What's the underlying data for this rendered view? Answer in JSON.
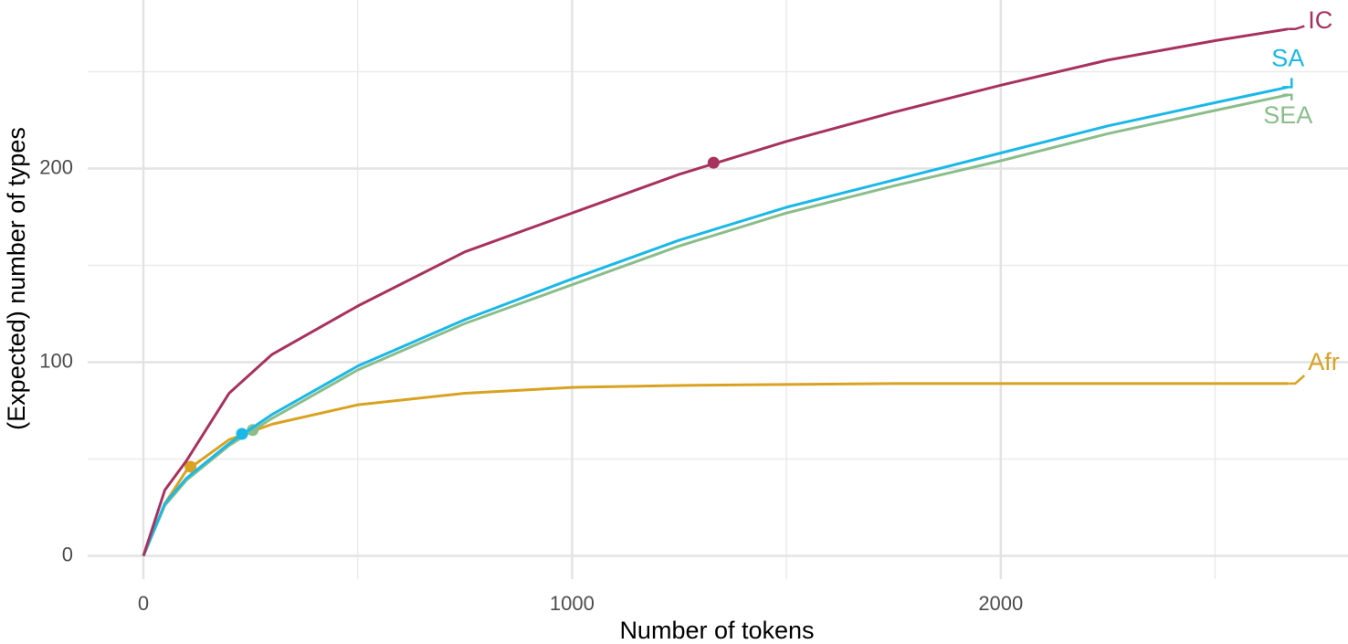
{
  "chart_data": {
    "type": "line",
    "x_label": "Number of tokens",
    "y_label": "(Expected) number of types",
    "x": [
      0,
      50,
      100,
      200,
      300,
      500,
      750,
      1000,
      1250,
      1500,
      1750,
      2000,
      2250,
      2500,
      2670
    ],
    "series": [
      {
        "name": "Afr",
        "color": "#d9a221",
        "values": [
          0,
          27,
          44,
          60,
          68,
          78,
          84,
          87,
          88,
          88.5,
          89,
          89,
          89,
          89,
          89
        ],
        "observed": [
          110,
          46
        ]
      },
      {
        "name": "SEA",
        "color": "#8bbd8b",
        "values": [
          0,
          26,
          39,
          57,
          71,
          96,
          120,
          140,
          160,
          177,
          191,
          204,
          218,
          230,
          238
        ],
        "observed": [
          255,
          65
        ]
      },
      {
        "name": "SA",
        "color": "#1ab8e8",
        "values": [
          0,
          27,
          40,
          58,
          73,
          98,
          122,
          143,
          163,
          180,
          194,
          208,
          222,
          234,
          242
        ],
        "observed": [
          230,
          63
        ]
      },
      {
        "name": "IC",
        "color": "#a8325e",
        "values": [
          0,
          34,
          49,
          84,
          104,
          129,
          157,
          177,
          197,
          214,
          229,
          243,
          256,
          266,
          272
        ],
        "observed": [
          1330,
          203
        ]
      }
    ],
    "xlim": [
      -130,
      2810
    ],
    "ylim": [
      -12,
      287
    ],
    "xticks": [
      0,
      1000,
      2000
    ],
    "yticks": [
      0,
      100,
      200
    ],
    "x_minor_grid": [
      500,
      1500,
      2500
    ],
    "y_minor_grid": [
      50,
      150,
      250
    ],
    "grid": true
  }
}
